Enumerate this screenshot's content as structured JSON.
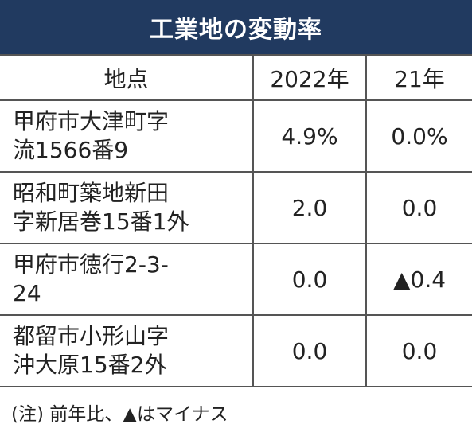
{
  "header": {
    "title": "工業地の変動率"
  },
  "table": {
    "columns": [
      "地点",
      "2022年",
      "21年"
    ],
    "rows": [
      [
        [
          "甲府市大津町字",
          "流1566番9"
        ],
        "4.9%",
        "0.0%"
      ],
      [
        [
          "昭和町築地新田",
          "字新居巻15番1外"
        ],
        "2.0",
        "0.0"
      ],
      [
        [
          "甲府市徳行2-3-",
          "24"
        ],
        "0.0",
        "▲0.4"
      ],
      [
        [
          "都留市小形山字",
          "沖大原15番2外"
        ],
        "0.0",
        "0.0"
      ]
    ]
  },
  "note": "(注) 前年比、▲はマイナス"
}
